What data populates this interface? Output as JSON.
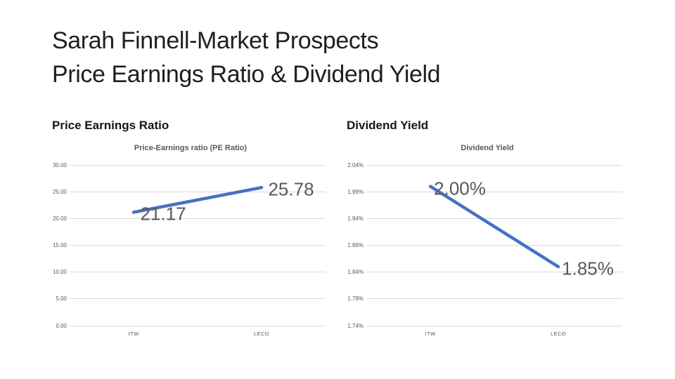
{
  "slide": {
    "title_line1": "Sarah Finnell-Market Prospects",
    "title_line2": "Price Earnings Ratio & Dividend Yield",
    "sections": [
      {
        "heading": "Price Earnings Ratio"
      },
      {
        "heading": "Dividend Yield"
      }
    ]
  },
  "colors": {
    "line": "#4472C4",
    "gridline": "#D9D9D9",
    "axis_text": "#595959",
    "data_label": "#595959",
    "title_text": "#1f1f1f"
  },
  "chart_data": [
    {
      "type": "line",
      "title": "Price-Earnings ratio (PE Ratio)",
      "categories": [
        "ITW",
        "LECO"
      ],
      "values": [
        21.17,
        25.78
      ],
      "data_labels": [
        "21.17",
        "25.78"
      ],
      "xlabel": "",
      "ylabel": "",
      "ylim": [
        0,
        30
      ],
      "ytick_values": [
        0,
        5,
        10,
        15,
        20,
        25,
        30
      ],
      "ytick_labels": [
        "0.00",
        "5.00",
        "10.00",
        "15.00",
        "20.00",
        "25.00",
        "30.00"
      ],
      "grid": true,
      "legend": "none"
    },
    {
      "type": "line",
      "title": "Dividend Yield",
      "categories": [
        "ITW",
        "LECO"
      ],
      "values": [
        2.0,
        1.85
      ],
      "data_labels": [
        "2.00%",
        "1.85%"
      ],
      "xlabel": "",
      "ylabel": "",
      "ylim": [
        1.74,
        2.04
      ],
      "ytick_values": [
        1.74,
        1.79,
        1.84,
        1.89,
        1.94,
        1.99,
        2.04
      ],
      "ytick_labels": [
        "1.74%",
        "1.79%",
        "1.84%",
        "1.89%",
        "1.94%",
        "1.99%",
        "2.04%"
      ],
      "grid": true,
      "legend": "none"
    }
  ]
}
